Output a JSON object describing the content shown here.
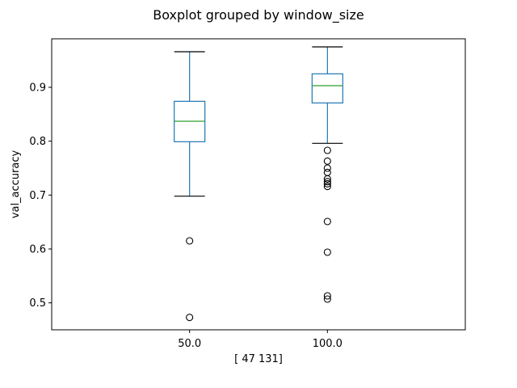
{
  "chart_data": {
    "type": "boxplot",
    "suptitle": "Boxplot grouped by window_size",
    "xlabel": "[ 47 131]",
    "ylabel": "val_accuracy",
    "ylim": [
      0.45,
      0.99
    ],
    "yticks": [
      0.5,
      0.6,
      0.7,
      0.8,
      0.9
    ],
    "ytick_labels": [
      "0.5",
      "0.6",
      "0.7",
      "0.8",
      "0.9"
    ],
    "grid": false,
    "colors": {
      "box": "#1f77b4",
      "median": "#2ca02c",
      "whisker": "#1f77b4",
      "cap": "#000000",
      "flier": "#000000"
    },
    "groups": [
      {
        "category": "50.0",
        "whisker_low": 0.698,
        "q1": 0.799,
        "median": 0.837,
        "q3": 0.874,
        "whisker_high": 0.966,
        "fliers": [
          0.615,
          0.473
        ]
      },
      {
        "category": "100.0",
        "whisker_low": 0.796,
        "q1": 0.871,
        "median": 0.903,
        "q3": 0.925,
        "whisker_high": 0.975,
        "fliers": [
          0.783,
          0.763,
          0.75,
          0.742,
          0.73,
          0.725,
          0.721,
          0.716,
          0.651,
          0.594,
          0.513,
          0.507
        ]
      }
    ]
  }
}
